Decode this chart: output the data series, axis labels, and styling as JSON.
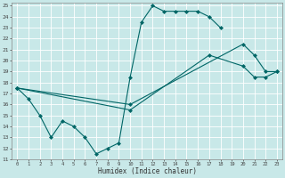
{
  "bg_color": "#c8e8e8",
  "grid_color": "#b0d8d8",
  "line_color": "#006666",
  "xlabel": "Humidex (Indice chaleur)",
  "xlim": [
    -0.5,
    23.5
  ],
  "ylim": [
    11,
    25.3
  ],
  "xticks": [
    0,
    1,
    2,
    3,
    4,
    5,
    6,
    7,
    8,
    9,
    10,
    11,
    12,
    13,
    14,
    15,
    16,
    17,
    18,
    19,
    20,
    21,
    22,
    23
  ],
  "yticks": [
    11,
    12,
    13,
    14,
    15,
    16,
    17,
    18,
    19,
    20,
    21,
    22,
    23,
    24,
    25
  ],
  "line1_x": [
    0,
    1,
    2,
    3,
    4,
    5,
    6,
    7,
    8,
    9,
    10,
    11,
    12,
    13,
    14,
    15,
    16,
    17,
    18
  ],
  "line1_y": [
    17.5,
    16.5,
    15.0,
    13.0,
    14.5,
    14.0,
    13.0,
    11.5,
    12.0,
    12.5,
    18.5,
    23.5,
    25.0,
    24.5,
    24.5,
    24.5,
    24.5,
    24.0,
    23.0
  ],
  "line2_x": [
    0,
    10,
    20,
    21,
    22,
    23
  ],
  "line2_y": [
    17.5,
    16.0,
    21.5,
    20.5,
    19.0,
    19.0
  ],
  "line3_x": [
    0,
    10,
    17,
    20,
    21,
    22,
    23
  ],
  "line3_y": [
    17.5,
    15.5,
    20.5,
    19.5,
    18.5,
    18.5,
    19.0
  ]
}
